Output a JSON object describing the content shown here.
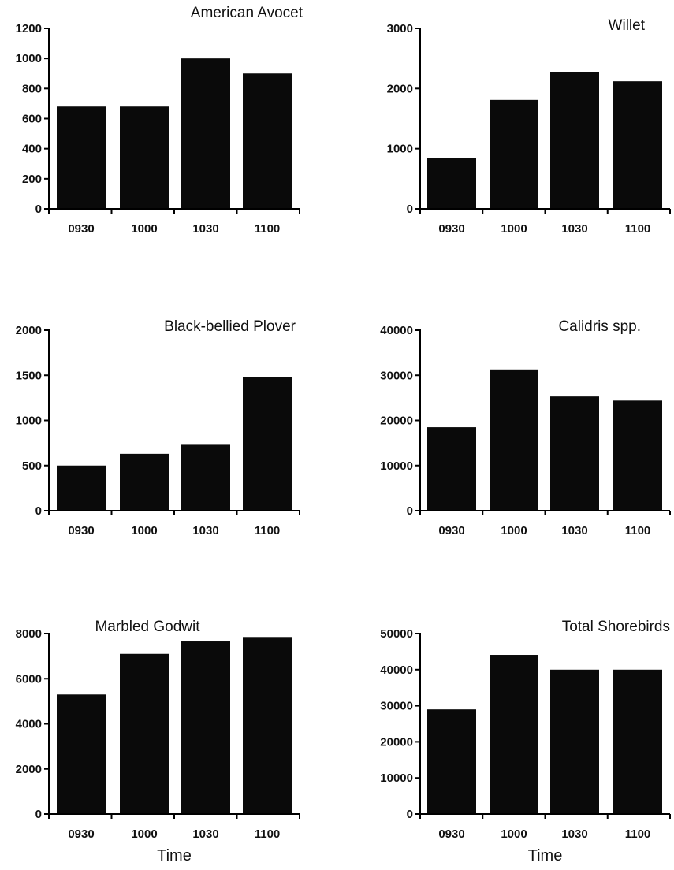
{
  "chart_data": [
    {
      "type": "bar",
      "title": "American Avocet",
      "categories": [
        "0930",
        "1000",
        "1030",
        "1100"
      ],
      "values": [
        680,
        680,
        1000,
        900
      ],
      "ylim": [
        0,
        1200
      ],
      "yticks": [
        0,
        200,
        400,
        600,
        800,
        1000,
        1200
      ],
      "xlabel": "",
      "bar_color": "#0a0a0a",
      "grid": false
    },
    {
      "type": "bar",
      "title": "Willet",
      "categories": [
        "0930",
        "1000",
        "1030",
        "1100"
      ],
      "values": [
        840,
        1810,
        2270,
        2120
      ],
      "ylim": [
        0,
        3000
      ],
      "yticks": [
        0,
        1000,
        2000,
        3000
      ],
      "xlabel": "",
      "bar_color": "#0a0a0a",
      "grid": false
    },
    {
      "type": "bar",
      "title": "Black-bellied Plover",
      "categories": [
        "0930",
        "1000",
        "1030",
        "1100"
      ],
      "values": [
        500,
        630,
        730,
        1480
      ],
      "ylim": [
        0,
        2000
      ],
      "yticks": [
        0,
        500,
        1000,
        1500,
        2000
      ],
      "xlabel": "",
      "bar_color": "#0a0a0a",
      "grid": false
    },
    {
      "type": "bar",
      "title": "Calidris spp.",
      "categories": [
        "0930",
        "1000",
        "1030",
        "1100"
      ],
      "values": [
        18500,
        31300,
        25300,
        24400
      ],
      "ylim": [
        0,
        40000
      ],
      "yticks": [
        0,
        10000,
        20000,
        30000,
        40000
      ],
      "xlabel": "",
      "bar_color": "#0a0a0a",
      "grid": false
    },
    {
      "type": "bar",
      "title": "Marbled Godwit",
      "categories": [
        "0930",
        "1000",
        "1030",
        "1100"
      ],
      "values": [
        5300,
        7100,
        7650,
        7850
      ],
      "ylim": [
        0,
        8000
      ],
      "yticks": [
        0,
        2000,
        4000,
        6000,
        8000
      ],
      "xlabel": "Time",
      "bar_color": "#0a0a0a",
      "grid": false
    },
    {
      "type": "bar",
      "title": "Total Shorebirds",
      "categories": [
        "0930",
        "1000",
        "1030",
        "1100"
      ],
      "values": [
        29000,
        44100,
        40000,
        40000
      ],
      "ylim": [
        0,
        50000
      ],
      "yticks": [
        0,
        10000,
        20000,
        30000,
        40000,
        50000
      ],
      "xlabel": "Time",
      "bar_color": "#0a0a0a",
      "grid": false
    }
  ]
}
